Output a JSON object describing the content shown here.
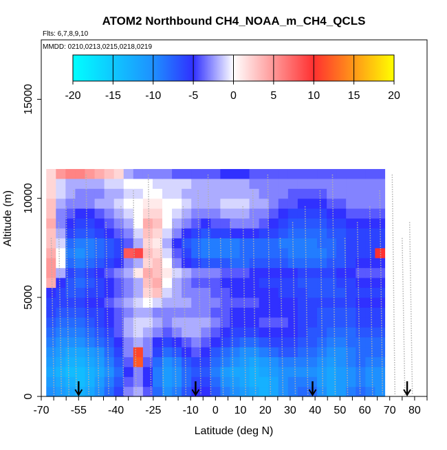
{
  "chart_data": {
    "type": "heatmap",
    "title": "ATOM2 Northbound CH4_NOAA_m_CH4_QCLS",
    "flights_label": "Flts: 6,7,8,9,10",
    "dates_label": "MMDD: 0210,0213,0215,0218,0219",
    "xlabel": "Latitude (deg N)",
    "ylabel": "Altitude (m)",
    "xlim": [
      -70,
      85
    ],
    "ylim": [
      0,
      18000
    ],
    "x_ticks": [
      -70,
      -55,
      -40,
      -25,
      -10,
      0,
      10,
      20,
      30,
      40,
      50,
      60,
      70,
      80
    ],
    "x_tick_labels": [
      "-70",
      "-55",
      "-40",
      "-25",
      "-10",
      "0",
      "10",
      "20",
      "30",
      "40",
      "50",
      "60",
      "70",
      "80"
    ],
    "y_ticks": [
      0,
      5000,
      10000,
      15000
    ],
    "y_tick_labels": [
      "0",
      "5000",
      "10000",
      "15000"
    ],
    "colorbar": {
      "min": -20,
      "max": 20,
      "ticks": [
        -20,
        -15,
        -10,
        -5,
        0,
        5,
        10,
        15,
        20
      ],
      "tick_labels": [
        "-20",
        "-15",
        "-10",
        "-5",
        "0",
        "5",
        "10",
        "15",
        "20"
      ],
      "colors": [
        "#00ffff",
        "#1e90ff",
        "#3030ff",
        "#ffffff",
        "#ff3030",
        "#ffff00"
      ]
    },
    "arrow_latitudes": [
      -55,
      -8,
      39,
      77
    ],
    "altitude_bin_edges": [
      0,
      500,
      1000,
      1500,
      2000,
      2500,
      3000,
      3500,
      4000,
      4500,
      5000,
      5500,
      6000,
      6500,
      7000,
      7500,
      8000,
      8500,
      9000,
      9500,
      10000,
      10500,
      11000,
      11500,
      12000
    ],
    "latitude_bins": [
      -68,
      68,
      1
    ],
    "value_rows": [
      [
        -10,
        -11,
        -12,
        -13,
        -12,
        -10,
        -8,
        -6,
        -3,
        -2,
        -4,
        -8,
        -10,
        -9,
        -7,
        -5,
        -5,
        -7,
        -9,
        -10,
        -11,
        -12,
        -13,
        -12,
        -10,
        -9,
        -8,
        -8,
        -10,
        -12,
        -11,
        -9,
        -8,
        -9,
        -10
      ],
      [
        -11,
        -12,
        -13,
        -14,
        -13,
        -11,
        -9,
        -7,
        -4,
        -3,
        -5,
        -9,
        -11,
        -10,
        -8,
        -6,
        -6,
        -8,
        -10,
        -11,
        -12,
        -13,
        -13,
        -12,
        -10,
        -9,
        -9,
        -9,
        -11,
        -12,
        -11,
        -10,
        -9,
        -10,
        -10
      ],
      [
        -12,
        -13,
        -14,
        -14,
        -13,
        -12,
        -10,
        -8,
        -5,
        -3,
        -5,
        -9,
        -11,
        -10,
        -8,
        -7,
        -7,
        -9,
        -11,
        -12,
        -12,
        -13,
        -12,
        -11,
        -10,
        -10,
        -10,
        -10,
        -11,
        -12,
        -11,
        -10,
        -9,
        -10,
        -10
      ],
      [
        -11,
        -12,
        -13,
        -13,
        -12,
        -11,
        -9,
        -7,
        -4,
        12,
        -4,
        -8,
        -10,
        -9,
        -7,
        -6,
        -6,
        -8,
        -9,
        -10,
        -11,
        -12,
        -11,
        -10,
        -9,
        -9,
        -9,
        -9,
        -10,
        -11,
        -10,
        -9,
        -8,
        -9,
        -9
      ],
      [
        -10,
        -11,
        -12,
        -12,
        -11,
        -10,
        -8,
        -6,
        -3,
        11,
        -3,
        -6,
        -8,
        -7,
        -5,
        -4,
        -5,
        -7,
        -8,
        -9,
        -10,
        -10,
        -9,
        -8,
        -7,
        -7,
        -8,
        -8,
        -9,
        -10,
        -10,
        -9,
        -8,
        -8,
        -8
      ],
      [
        -9,
        -10,
        -10,
        -10,
        -9,
        -8,
        -7,
        -5,
        -3,
        -2,
        -3,
        -5,
        -6,
        -5,
        -4,
        -3,
        -4,
        -5,
        -6,
        -7,
        -8,
        -8,
        -7,
        -6,
        -6,
        -6,
        -7,
        -7,
        -8,
        -9,
        -9,
        -8,
        -8,
        -8,
        -8
      ],
      [
        -8,
        -9,
        -9,
        -9,
        -8,
        -7,
        -6,
        -4,
        -2,
        -1,
        -2,
        -3,
        -4,
        -3,
        -2,
        -2,
        -3,
        -4,
        -5,
        -6,
        -6,
        -6,
        -5,
        -5,
        -5,
        -5,
        -6,
        -7,
        -7,
        -8,
        -8,
        -8,
        -7,
        -7,
        -7
      ],
      [
        -7,
        -8,
        -8,
        -8,
        -7,
        -6,
        -5,
        -4,
        -2,
        -1,
        -1,
        -2,
        -3,
        -2,
        -2,
        -2,
        -2,
        -3,
        -4,
        -5,
        -5,
        -5,
        -4,
        -4,
        -4,
        -5,
        -6,
        -6,
        -7,
        -7,
        -7,
        -7,
        -6,
        -6,
        -6
      ],
      [
        -6,
        -7,
        -7,
        -7,
        -6,
        -6,
        -5,
        -4,
        -3,
        -2,
        -2,
        -3,
        -3,
        -3,
        -3,
        -3,
        -3,
        -4,
        -4,
        -5,
        -5,
        -5,
        -5,
        -5,
        -5,
        -5,
        -6,
        -6,
        -7,
        -7,
        -7,
        -7,
        -6,
        -6,
        -6
      ],
      [
        -6,
        -6,
        -6,
        -6,
        -5,
        -5,
        -4,
        -3,
        -2,
        -1,
        0,
        -1,
        -2,
        -2,
        -2,
        -3,
        -3,
        -3,
        -4,
        -4,
        -4,
        -4,
        -5,
        -5,
        -5,
        -5,
        -6,
        -6,
        -6,
        -6,
        -6,
        -6,
        -5,
        -5,
        -5
      ],
      [
        -5,
        -6,
        -7,
        -7,
        -6,
        -6,
        -5,
        -4,
        -3,
        -2,
        2,
        3,
        -1,
        -2,
        -3,
        -3,
        -3,
        -4,
        -4,
        -5,
        -5,
        -5,
        -5,
        -5,
        -6,
        -6,
        -6,
        -7,
        -7,
        -7,
        -7,
        -6,
        -6,
        -6,
        -6
      ],
      [
        4,
        -5,
        -7,
        -8,
        -7,
        -6,
        -5,
        -4,
        -3,
        -2,
        3,
        4,
        0,
        -2,
        -3,
        -4,
        -4,
        -4,
        -5,
        -5,
        -5,
        -5,
        -6,
        -6,
        -6,
        -6,
        -7,
        -7,
        -7,
        -7,
        -6,
        -6,
        -5,
        -5,
        -5
      ],
      [
        5,
        -2,
        -6,
        -7,
        -6,
        -5,
        -4,
        -3,
        -2,
        1,
        4,
        3,
        1,
        -1,
        -2,
        -3,
        -3,
        -3,
        -4,
        -4,
        -4,
        -5,
        -5,
        -5,
        -5,
        -5,
        -6,
        -6,
        -6,
        -6,
        -5,
        -5,
        -4,
        -4,
        -4
      ],
      [
        5,
        0,
        -8,
        -9,
        -8,
        -7,
        -6,
        -5,
        -3,
        -2,
        2,
        3,
        0,
        -3,
        -5,
        -6,
        -7,
        -7,
        -7,
        -8,
        -8,
        -7,
        -7,
        -7,
        -7,
        -8,
        -8,
        -8,
        -8,
        -7,
        -7,
        -6,
        -5,
        -5,
        -5
      ],
      [
        4,
        0,
        -9,
        -10,
        -9,
        -8,
        -7,
        -6,
        8,
        9,
        3,
        2,
        -1,
        -4,
        -6,
        -8,
        -9,
        -9,
        -9,
        -9,
        -8,
        -8,
        -8,
        -8,
        -8,
        -9,
        -9,
        -9,
        -9,
        -8,
        -7,
        -6,
        -6,
        -6,
        10
      ],
      [
        3,
        -1,
        -8,
        -9,
        -9,
        -8,
        -7,
        -6,
        -4,
        -2,
        2,
        1,
        -2,
        -5,
        -7,
        -8,
        -9,
        -9,
        -9,
        -9,
        -8,
        -8,
        -8,
        -8,
        -9,
        -9,
        -9,
        -9,
        -8,
        -8,
        -7,
        -6,
        -6,
        -6,
        -6
      ],
      [
        3,
        -2,
        -6,
        -7,
        -7,
        -6,
        -5,
        -4,
        -3,
        -1,
        3,
        2,
        -1,
        -3,
        -5,
        -6,
        -7,
        -6,
        -6,
        -5,
        -5,
        -5,
        -6,
        -6,
        -7,
        -8,
        -8,
        -8,
        -8,
        -7,
        -7,
        -6,
        -6,
        -6,
        -6
      ],
      [
        4,
        -3,
        -5,
        -6,
        -6,
        -5,
        -4,
        -3,
        -2,
        0,
        4,
        3,
        0,
        -2,
        -3,
        -4,
        -5,
        -4,
        -4,
        -3,
        -3,
        -3,
        -4,
        -5,
        -6,
        -7,
        -7,
        -7,
        -7,
        -6,
        -6,
        -5,
        -5,
        -5,
        -5
      ],
      [
        3,
        -3,
        -4,
        -5,
        -5,
        -4,
        -3,
        -2,
        -1,
        0,
        2,
        2,
        0,
        -1,
        -2,
        -3,
        -3,
        -3,
        -2,
        -2,
        -2,
        -3,
        -3,
        -4,
        -5,
        -6,
        -6,
        -6,
        -6,
        -5,
        -5,
        -4,
        -4,
        -4,
        -4
      ],
      [
        3,
        -2,
        -3,
        -3,
        -3,
        -2,
        -2,
        -1,
        0,
        0,
        1,
        1,
        0,
        0,
        -1,
        -2,
        -2,
        -2,
        -1,
        -1,
        -1,
        -2,
        -2,
        -3,
        -4,
        -4,
        -5,
        -5,
        -5,
        -4,
        -4,
        -3,
        -3,
        -3,
        -3
      ],
      [
        2,
        -1,
        -2,
        -3,
        -3,
        -3,
        -2,
        -2,
        -1,
        -1,
        0,
        0,
        -1,
        -1,
        -2,
        -2,
        -2,
        -2,
        -2,
        -2,
        -2,
        -2,
        -3,
        -3,
        -3,
        -4,
        -4,
        -4,
        -4,
        -3,
        -3,
        -3,
        -3,
        -3,
        -3
      ],
      [
        2,
        -1,
        -2,
        -2,
        -2,
        -2,
        -1,
        -1,
        0,
        0,
        0,
        -1,
        -1,
        -1,
        -1,
        -2,
        -2,
        -2,
        -2,
        -2,
        -2,
        -3,
        -3,
        -3,
        -3,
        -3,
        -3,
        -3,
        -3,
        -3,
        -3,
        -3,
        -3,
        -3,
        -3
      ],
      [
        2,
        5,
        6,
        6,
        5,
        4,
        3,
        2,
        -2,
        -3,
        -3,
        -3,
        -3,
        -4,
        -4,
        -4,
        -4,
        -4,
        -5,
        -5,
        -5,
        -4,
        -4,
        -4,
        -4,
        -4,
        -4,
        -4,
        -4,
        -4,
        -4,
        -4,
        -4,
        -4,
        -4
      ],
      [
        0,
        0,
        0,
        0,
        0,
        0,
        0,
        0,
        0,
        0,
        0,
        0,
        0,
        0,
        0,
        0,
        0,
        0,
        0,
        0,
        0,
        0,
        0,
        0,
        0,
        0,
        0,
        0,
        0,
        0,
        0,
        0,
        0,
        0,
        0
      ]
    ]
  }
}
